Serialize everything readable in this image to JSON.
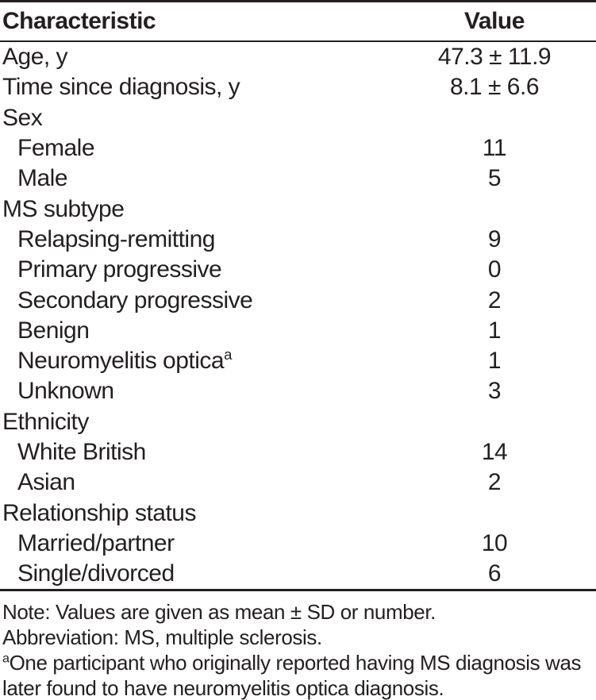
{
  "table": {
    "header": {
      "characteristic": "Characteristic",
      "value": "Value"
    },
    "rows": [
      {
        "label": "Age, y",
        "value": "47.3 ± 11.9",
        "indent": false
      },
      {
        "label": "Time since diagnosis, y",
        "value": "8.1 ± 6.6",
        "indent": false
      },
      {
        "label": "Sex",
        "value": "",
        "indent": false
      },
      {
        "label": "Female",
        "value": "11",
        "indent": true
      },
      {
        "label": "Male",
        "value": "5",
        "indent": true
      },
      {
        "label": "MS subtype",
        "value": "",
        "indent": false
      },
      {
        "label": "Relapsing-remitting",
        "value": "9",
        "indent": true
      },
      {
        "label": "Primary progressive",
        "value": "0",
        "indent": true
      },
      {
        "label": "Secondary progressive",
        "value": "2",
        "indent": true
      },
      {
        "label": "Benign",
        "value": "1",
        "indent": true
      },
      {
        "label": "Neuromyelitis optica",
        "sup": "a",
        "value": "1",
        "indent": true
      },
      {
        "label": "Unknown",
        "value": "3",
        "indent": true
      },
      {
        "label": "Ethnicity",
        "value": "",
        "indent": false
      },
      {
        "label": "White British",
        "value": "14",
        "indent": true
      },
      {
        "label": "Asian",
        "value": "2",
        "indent": true
      },
      {
        "label": "Relationship status",
        "value": "",
        "indent": false
      },
      {
        "label": "Married/partner",
        "value": "10",
        "indent": true
      },
      {
        "label": "Single/divorced",
        "value": "6",
        "indent": true
      }
    ]
  },
  "notes": [
    {
      "text": "Note: Values are given as mean ± SD or number."
    },
    {
      "text": "Abbreviation: MS, multiple sclerosis."
    },
    {
      "sup": "a",
      "text": "One participant who originally reported having MS diagnosis was"
    },
    {
      "text": "later found to have neuromyelitis optica diagnosis."
    }
  ],
  "colors": {
    "text": "#231f20",
    "rule": "#231f20",
    "background": "#ffffff"
  }
}
